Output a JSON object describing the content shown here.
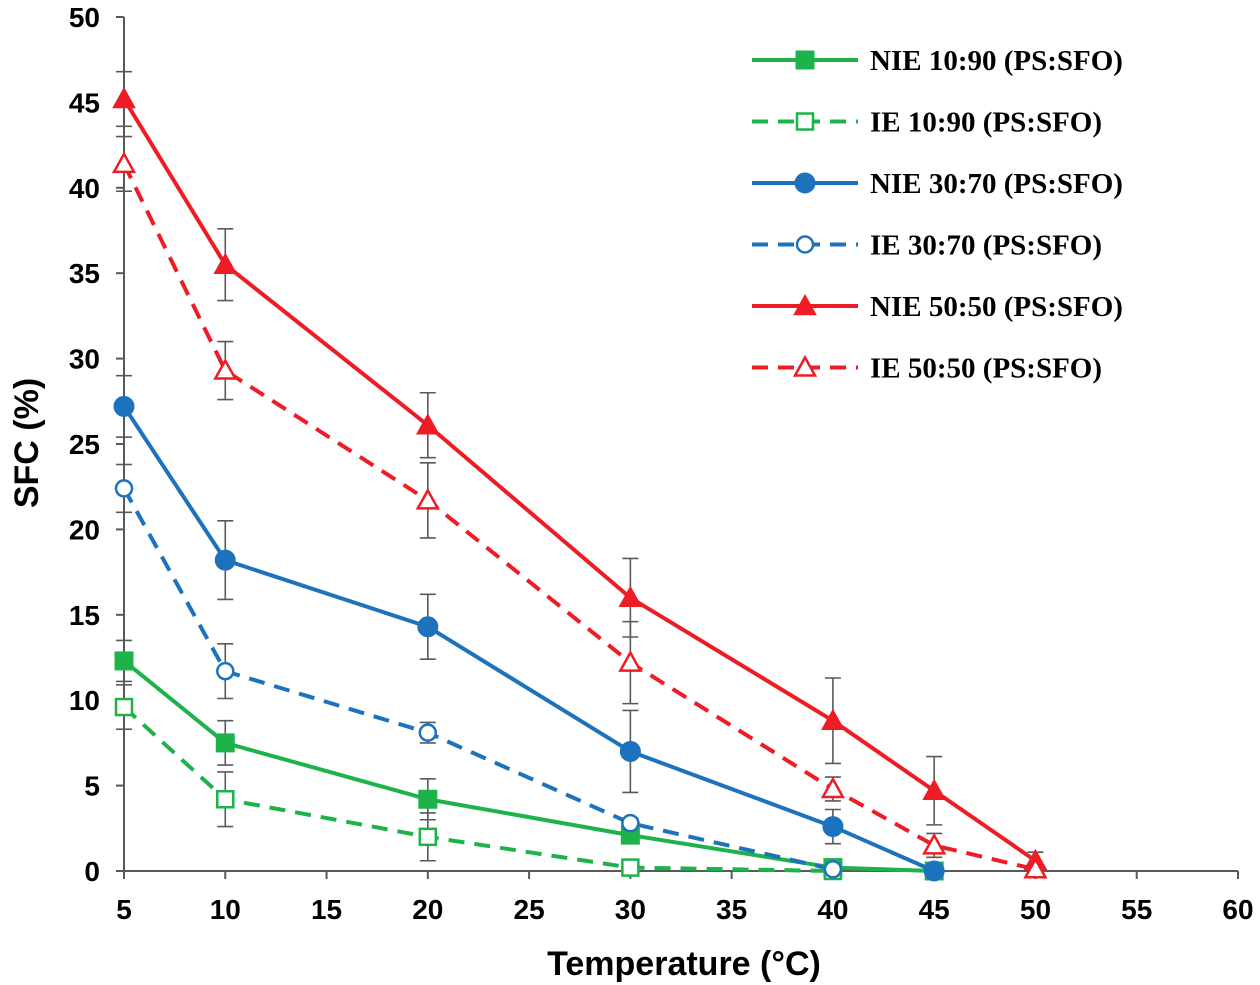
{
  "chart_data": {
    "type": "line",
    "xlabel": "Temperature (°C)",
    "ylabel": "SFC (%)",
    "xlim": [
      5,
      60
    ],
    "ylim": [
      0,
      50
    ],
    "x_ticks": [
      "5",
      "10",
      "15",
      "20",
      "25",
      "30",
      "35",
      "40",
      "45",
      "50",
      "55",
      "60"
    ],
    "y_ticks": [
      "0",
      "5",
      "10",
      "15",
      "20",
      "25",
      "30",
      "35",
      "40",
      "45",
      "50"
    ],
    "grid": false,
    "legend_position": "top-right",
    "series": [
      {
        "name": "NIE 10:90 (PS:SFO)",
        "color": "#1db34a",
        "dashed": false,
        "marker": "square",
        "filled": true,
        "x": [
          5,
          10,
          20,
          30,
          40,
          45
        ],
        "y": [
          12.3,
          7.5,
          4.2,
          2.1,
          0.2,
          0.0
        ],
        "err": [
          1.2,
          1.3,
          1.2,
          0.5,
          0.3,
          0.0
        ]
      },
      {
        "name": "IE 10:90 (PS:SFO)",
        "color": "#1db34a",
        "dashed": true,
        "marker": "square",
        "filled": false,
        "x": [
          5,
          10,
          20,
          30,
          40
        ],
        "y": [
          9.6,
          4.2,
          2.0,
          0.2,
          0.0
        ],
        "err": [
          1.3,
          1.6,
          1.4,
          0.3,
          0.2
        ]
      },
      {
        "name": "NIE 30:70 (PS:SFO)",
        "color": "#1d72bd",
        "dashed": false,
        "marker": "circle",
        "filled": true,
        "x": [
          5,
          10,
          20,
          30,
          40,
          45
        ],
        "y": [
          27.2,
          18.2,
          14.3,
          7.0,
          2.6,
          0.0
        ],
        "err": [
          1.8,
          2.3,
          1.9,
          2.4,
          1.0,
          0.2
        ]
      },
      {
        "name": "IE 30:70 (PS:SFO)",
        "color": "#1d72bd",
        "dashed": true,
        "marker": "circle",
        "filled": false,
        "x": [
          5,
          10,
          20,
          30,
          40
        ],
        "y": [
          22.4,
          11.7,
          8.1,
          2.8,
          0.1
        ],
        "err": [
          1.4,
          1.6,
          0.6,
          0.3,
          0.2
        ]
      },
      {
        "name": "NIE 50:50 (PS:SFO)",
        "color": "#ee1c24",
        "dashed": false,
        "marker": "triangle",
        "filled": true,
        "x": [
          5,
          10,
          20,
          30,
          40,
          45,
          50
        ],
        "y": [
          45.2,
          35.5,
          26.1,
          16.0,
          8.8,
          4.7,
          0.6
        ],
        "err": [
          1.6,
          2.1,
          1.9,
          2.3,
          2.5,
          2.0,
          0.5
        ]
      },
      {
        "name": "IE 50:50 (PS:SFO)",
        "color": "#ee1c24",
        "dashed": true,
        "marker": "triangle",
        "filled": false,
        "x": [
          5,
          10,
          20,
          30,
          40,
          45,
          50
        ],
        "y": [
          41.4,
          29.3,
          21.7,
          12.2,
          4.8,
          1.5,
          0.1
        ],
        "err": [
          1.6,
          1.7,
          2.2,
          2.4,
          0.7,
          0.7,
          0.1
        ]
      }
    ]
  }
}
